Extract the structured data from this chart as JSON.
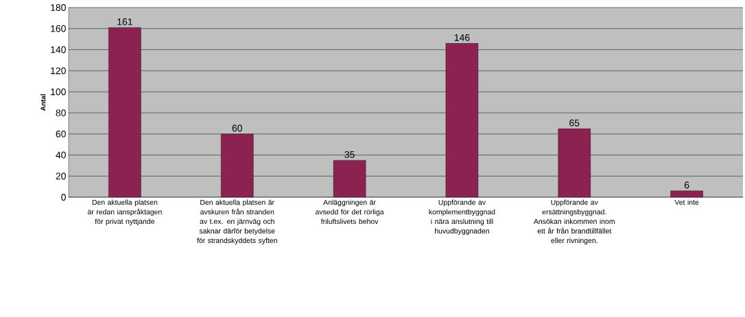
{
  "chart_data": {
    "type": "bar",
    "ylabel": "Antal",
    "categories": [
      "Den aktuella platsen är redan ianspråktagen för privat nyttjande",
      "Den aktuella platsen är avskuren från stranden av t.ex. en järnväg och saknar därför betydelse för strandskyddets syften",
      "Anläggningen är avsedd för det rörliga friluftslivets behov",
      "Uppförande av komplementbyggnad i nära anslutning till huvudbyggnaden",
      "Uppförande av ersättningsbyggnad. Ansökan inkommen inom ett år från brandtillfället eller rivningen.",
      "Vet inte"
    ],
    "values": [
      161,
      60,
      35,
      146,
      65,
      6
    ],
    "color": "#8b2252",
    "ylim": [
      0,
      180
    ],
    "yticks": [
      0,
      20,
      40,
      60,
      80,
      100,
      120,
      140,
      160,
      180
    ],
    "grid": "y",
    "data_labels": true
  }
}
